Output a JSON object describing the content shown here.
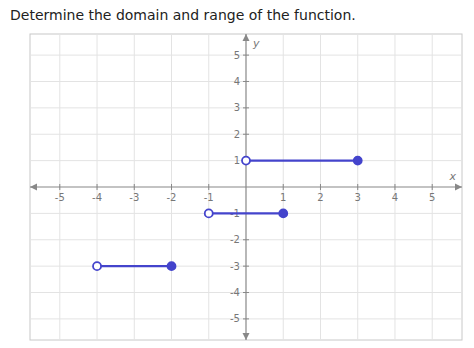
{
  "chart_data": {
    "type": "line",
    "title": "Determine the domain and range of the function.",
    "xlabel": "x",
    "ylabel": "y",
    "xlim": [
      -5.8,
      5.8
    ],
    "ylim": [
      -5.8,
      5.8
    ],
    "xticks": [
      -5,
      -4,
      -3,
      -2,
      -1,
      1,
      2,
      3,
      4,
      5
    ],
    "yticks": [
      -5,
      -4,
      -3,
      -2,
      -1,
      1,
      2,
      3,
      4,
      5
    ],
    "grid": true,
    "series": [
      {
        "x": [
          0,
          3
        ],
        "values": [
          1,
          1
        ],
        "color": "#4444cc",
        "marker": "open-closed"
      },
      {
        "x": [
          -1,
          1
        ],
        "values": [
          -1,
          -1
        ],
        "color": "#4444cc",
        "marker": "open-closed"
      },
      {
        "x": [
          -4,
          -2
        ],
        "values": [
          -3,
          -3
        ],
        "color": "#4444cc",
        "marker": "open-closed"
      }
    ]
  }
}
